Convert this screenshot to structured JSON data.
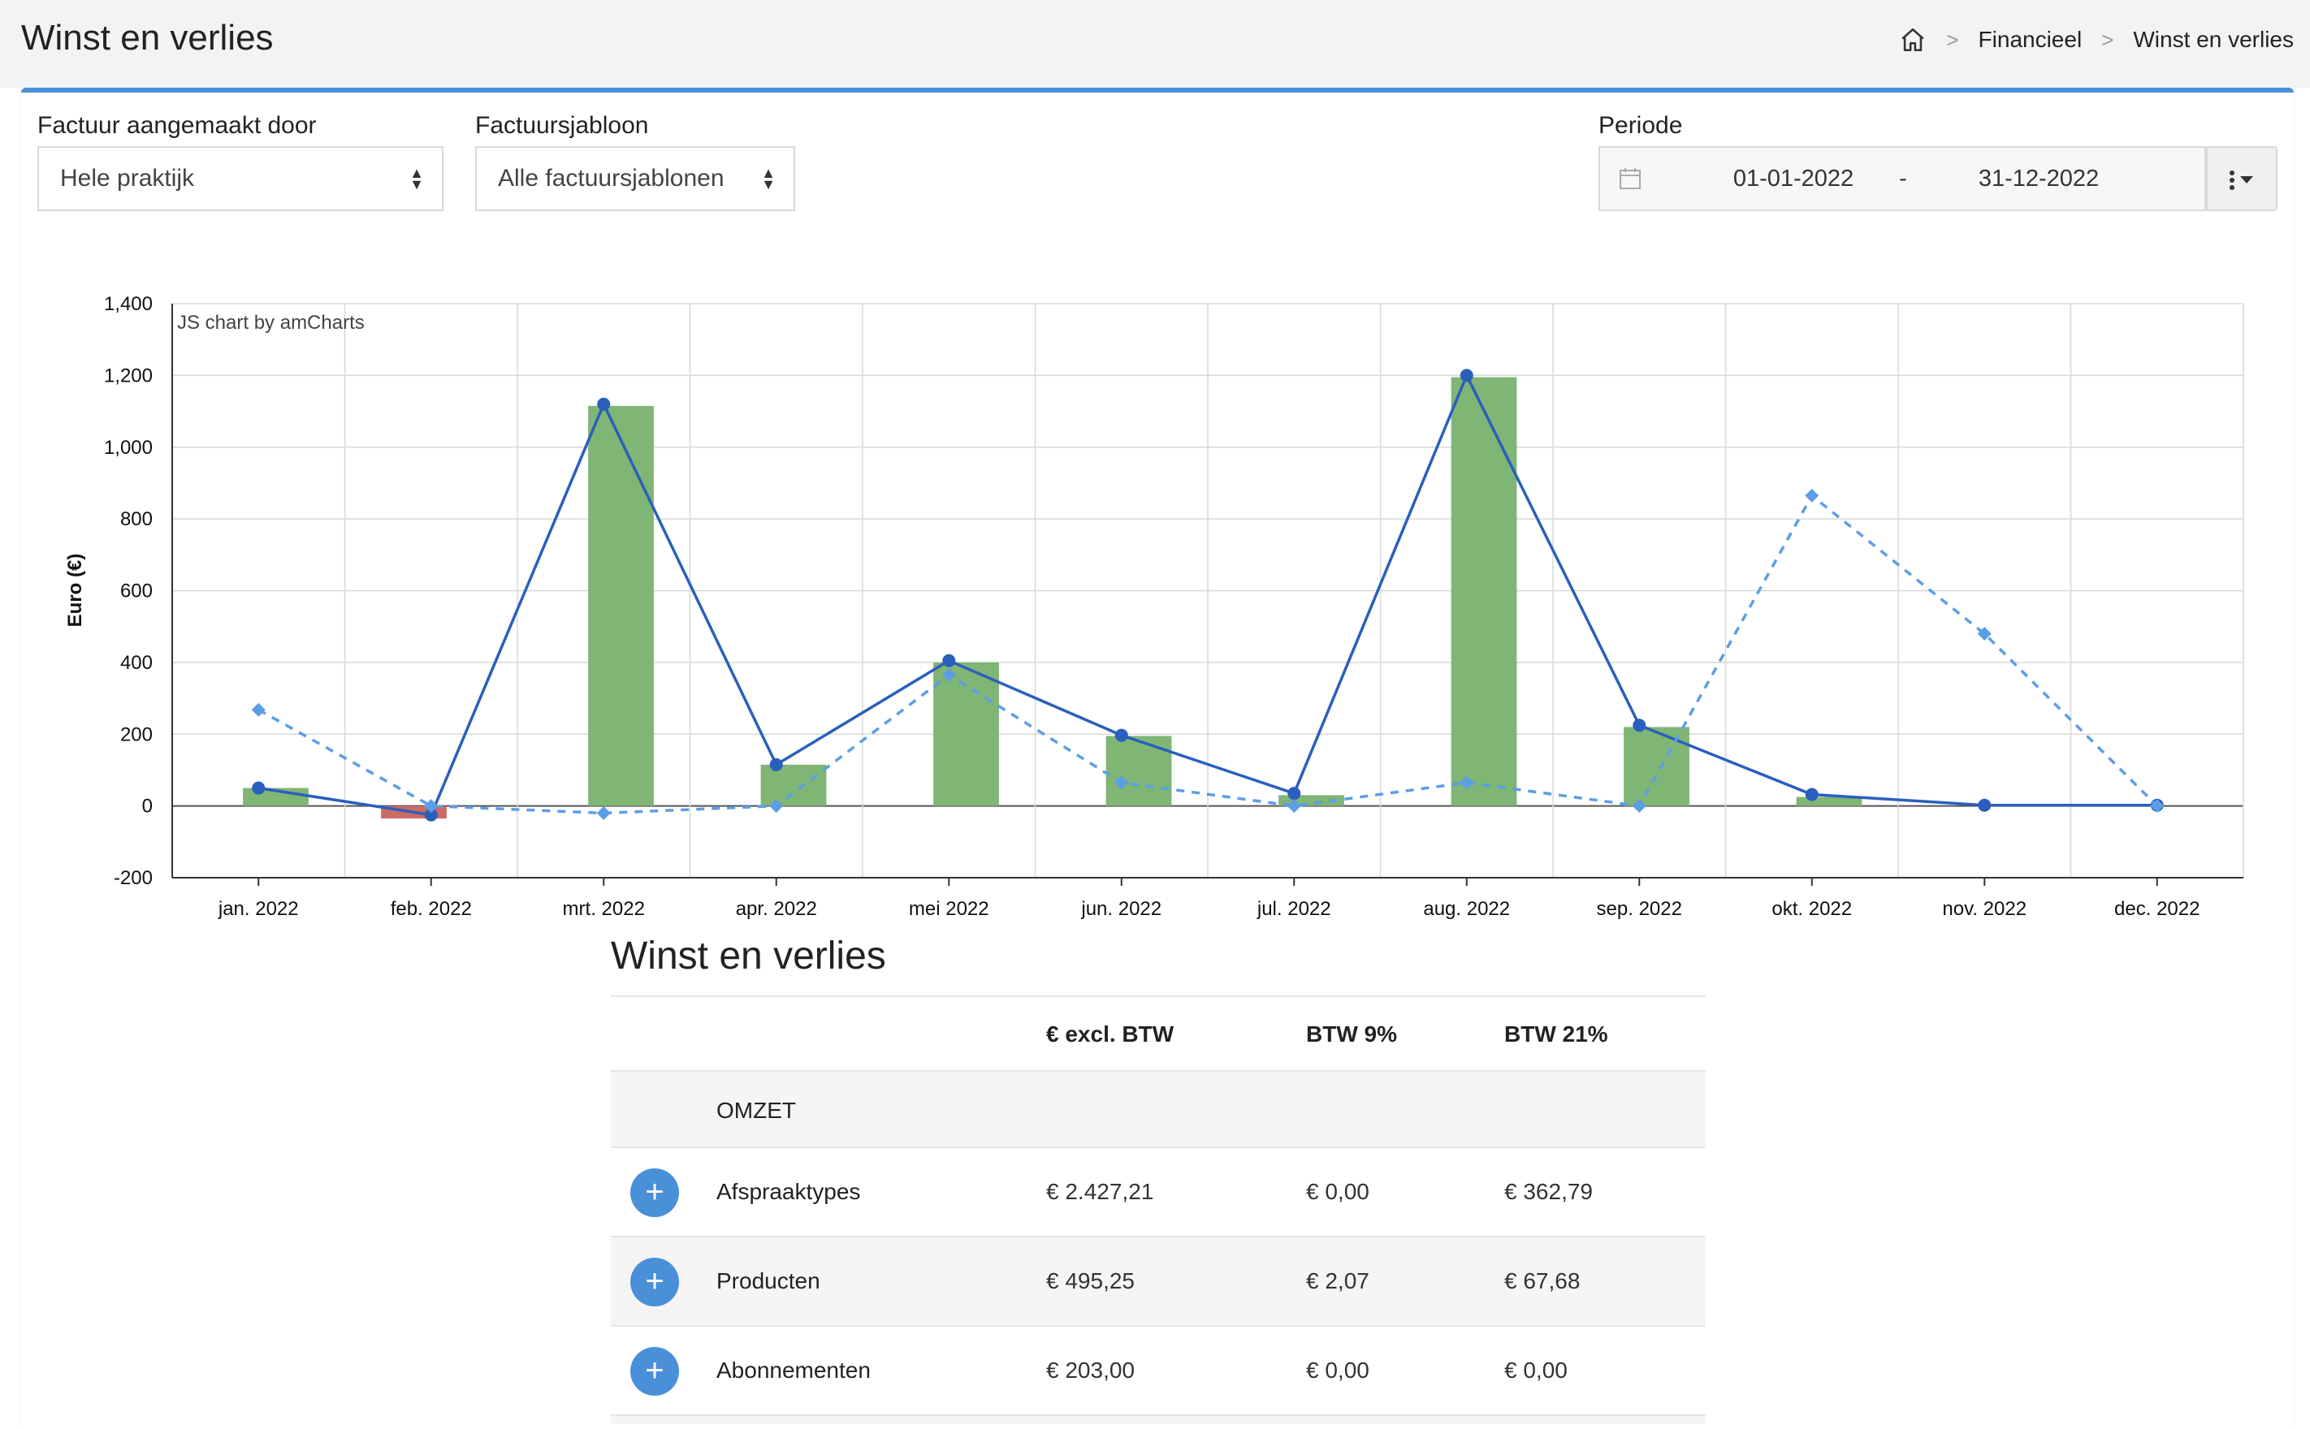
{
  "header": {
    "title": "Winst en verlies",
    "breadcrumb": [
      "Financieel",
      "Winst en verlies"
    ]
  },
  "filters": {
    "created_by": {
      "label": "Factuur aangemaakt door",
      "value": "Hele praktijk"
    },
    "template": {
      "label": "Factuursjabloon",
      "value": "Alle factuursjablonen"
    },
    "period": {
      "label": "Periode",
      "from": "01-01-2022",
      "to": "31-12-2022",
      "separator": "-"
    }
  },
  "chart_data": {
    "type": "bar",
    "watermark": "JS chart by amCharts",
    "ylabel": "Euro (€)",
    "xlabel": "",
    "ylim": [
      -200,
      1400
    ],
    "yticks": [
      "-200",
      "0",
      "200",
      "400",
      "600",
      "800",
      "1,000",
      "1,200",
      "1,400"
    ],
    "ytick_values": [
      -200,
      0,
      200,
      400,
      600,
      800,
      1000,
      1200,
      1400
    ],
    "categories": [
      "jan. 2022",
      "feb. 2022",
      "mrt. 2022",
      "apr. 2022",
      "mei 2022",
      "jun. 2022",
      "jul. 2022",
      "aug. 2022",
      "sep. 2022",
      "okt. 2022",
      "nov. 2022",
      "dec. 2022"
    ],
    "series": [
      {
        "type": "bar",
        "values": [
          50,
          -35,
          1115,
          115,
          400,
          195,
          30,
          1195,
          220,
          25,
          0,
          0
        ],
        "positive_color": "#7fb575",
        "negative_color": "#cc6b63"
      },
      {
        "type": "line",
        "values": [
          50,
          -25,
          1120,
          115,
          405,
          197,
          35,
          1200,
          225,
          32,
          2,
          2
        ],
        "color": "#2a5fbd"
      },
      {
        "type": "line",
        "dashed": true,
        "values": [
          268,
          0,
          -20,
          0,
          365,
          65,
          0,
          65,
          0,
          865,
          480,
          0
        ],
        "color": "#5b9ee6"
      }
    ],
    "grid": true,
    "legend": "none"
  },
  "table": {
    "title": "Winst en verlies",
    "columns": [
      "€ excl. BTW",
      "BTW 9%",
      "BTW 21%"
    ],
    "section": "OMZET",
    "rows": [
      {
        "label": "Afspraaktypes",
        "excl": "€ 2.427,21",
        "btw9": "€ 0,00",
        "btw21": "€ 362,79"
      },
      {
        "label": "Producten",
        "excl": "€ 495,25",
        "btw9": "€ 2,07",
        "btw21": "€ 67,68"
      },
      {
        "label": "Abonnementen",
        "excl": "€ 203,00",
        "btw9": "€ 0,00",
        "btw21": "€ 0,00"
      }
    ],
    "add_symbol": "+"
  }
}
